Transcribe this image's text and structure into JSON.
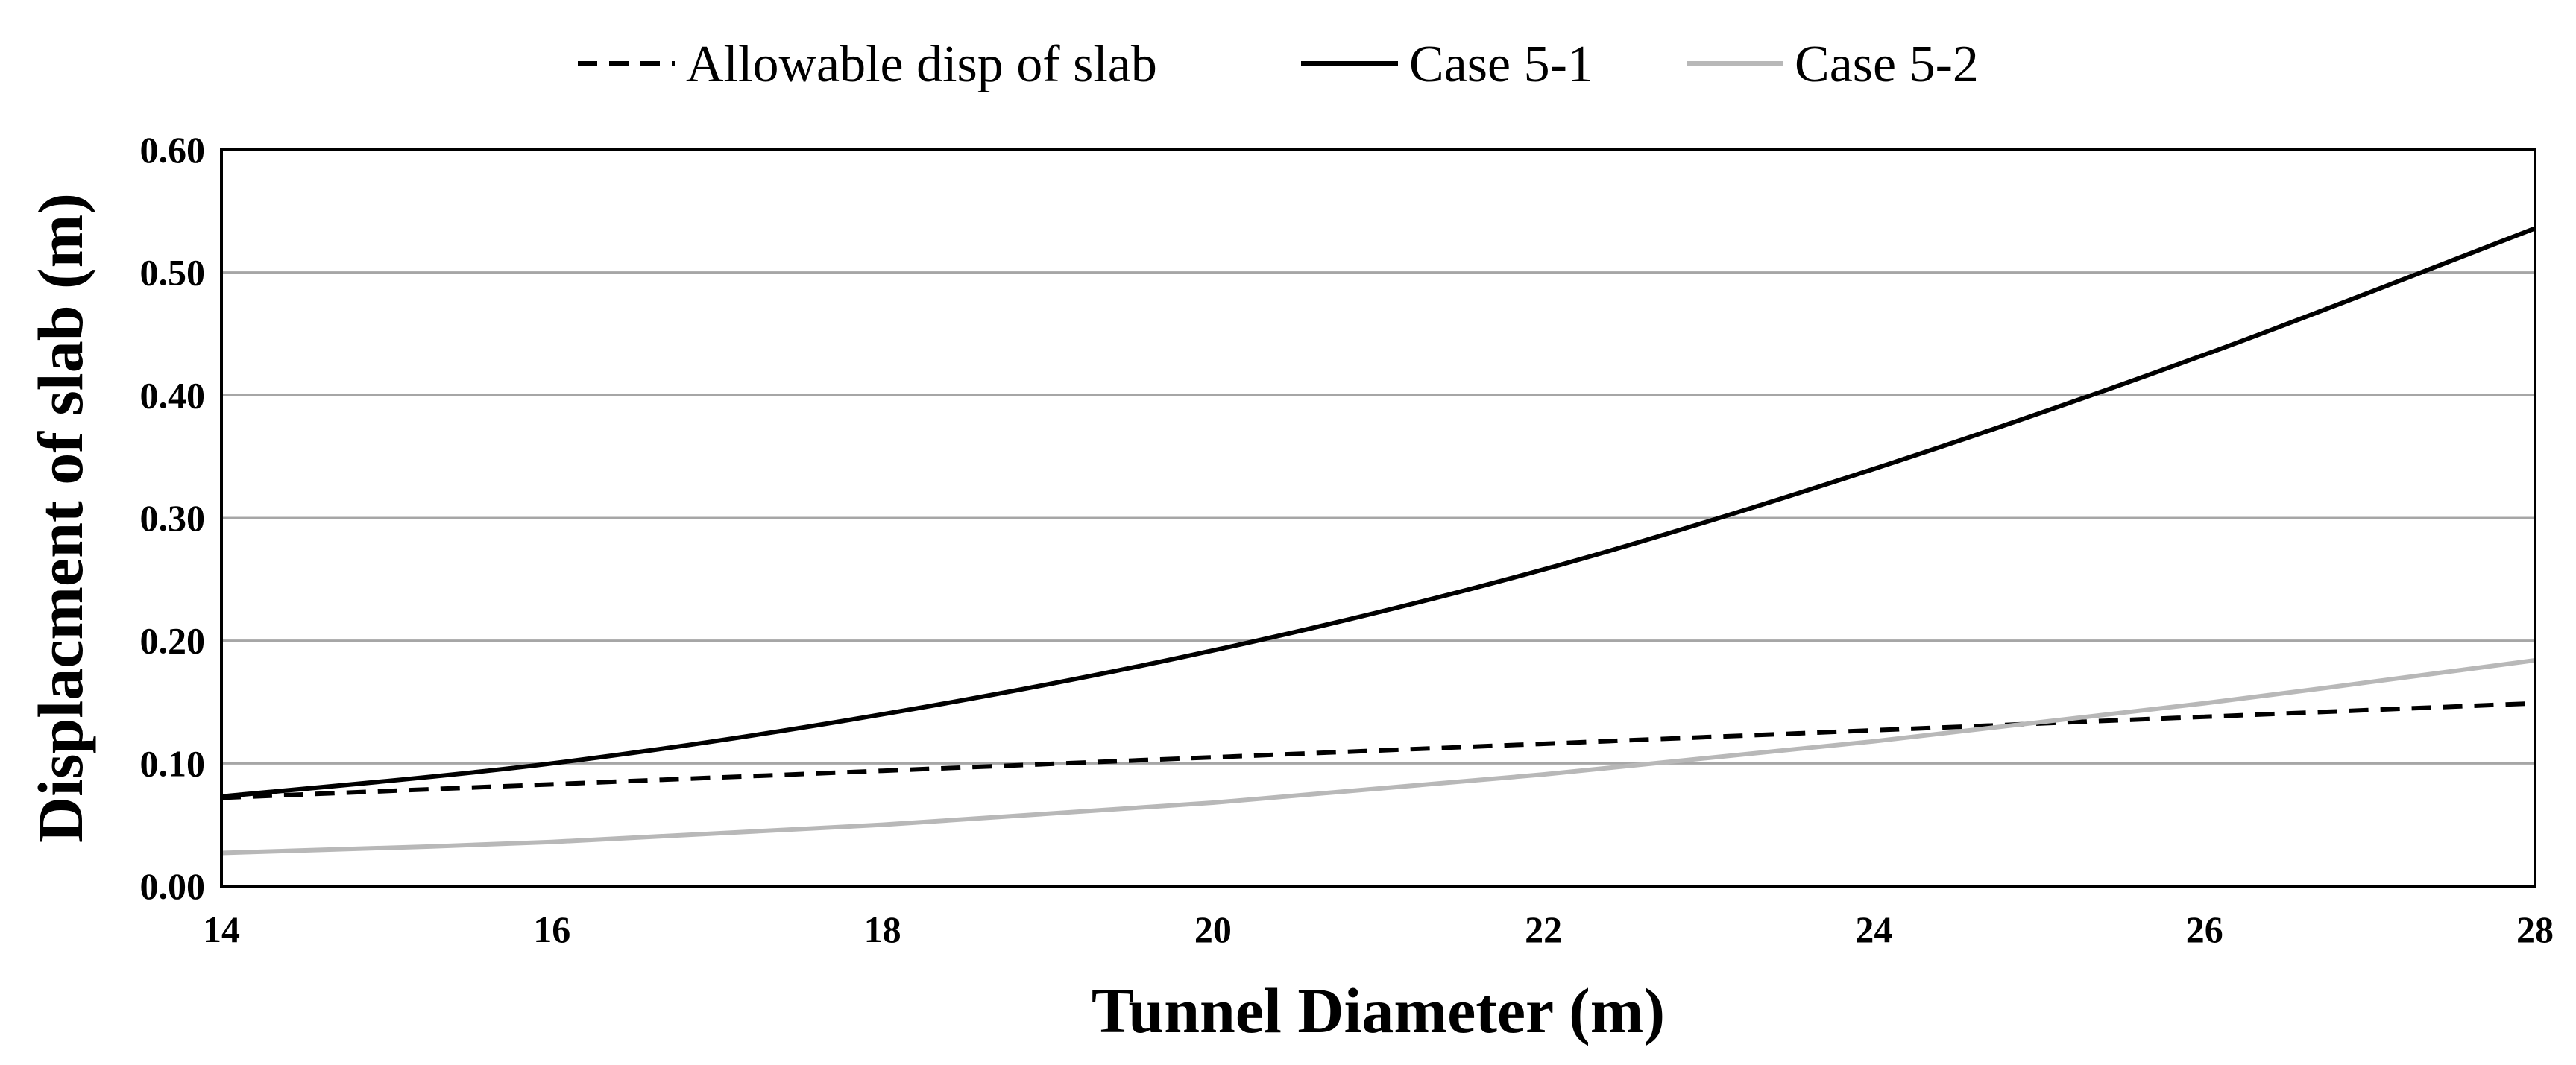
{
  "chart_data": {
    "type": "line",
    "title": "",
    "xlabel": "Tunnel Diameter (m)",
    "ylabel": "Displacment of slab (m)",
    "xlim": [
      14,
      28
    ],
    "ylim": [
      0,
      0.6
    ],
    "x_ticks": [
      "14",
      "16",
      "18",
      "20",
      "22",
      "24",
      "26",
      "28"
    ],
    "y_ticks": [
      "0.00",
      "0.10",
      "0.20",
      "0.30",
      "0.40",
      "0.50",
      "0.60"
    ],
    "grid": "horizontal",
    "legend_position": "top",
    "x": [
      14,
      16,
      18,
      20,
      22,
      24,
      26,
      28
    ],
    "series": [
      {
        "name": "Allowable disp of slab",
        "style": "dashed",
        "color": "#000000",
        "values": [
          0.072,
          0.083,
          0.094,
          0.105,
          0.116,
          0.127,
          0.138,
          0.149
        ]
      },
      {
        "name": "Case 5-1",
        "style": "solid",
        "color": "#000000",
        "values": [
          0.073,
          0.1,
          0.14,
          0.192,
          0.258,
          0.34,
          0.433,
          0.536
        ]
      },
      {
        "name": "Case 5-2",
        "style": "solid",
        "color": "#b8b8b8",
        "values": [
          0.027,
          0.036,
          0.05,
          0.068,
          0.091,
          0.118,
          0.149,
          0.184
        ]
      }
    ]
  }
}
